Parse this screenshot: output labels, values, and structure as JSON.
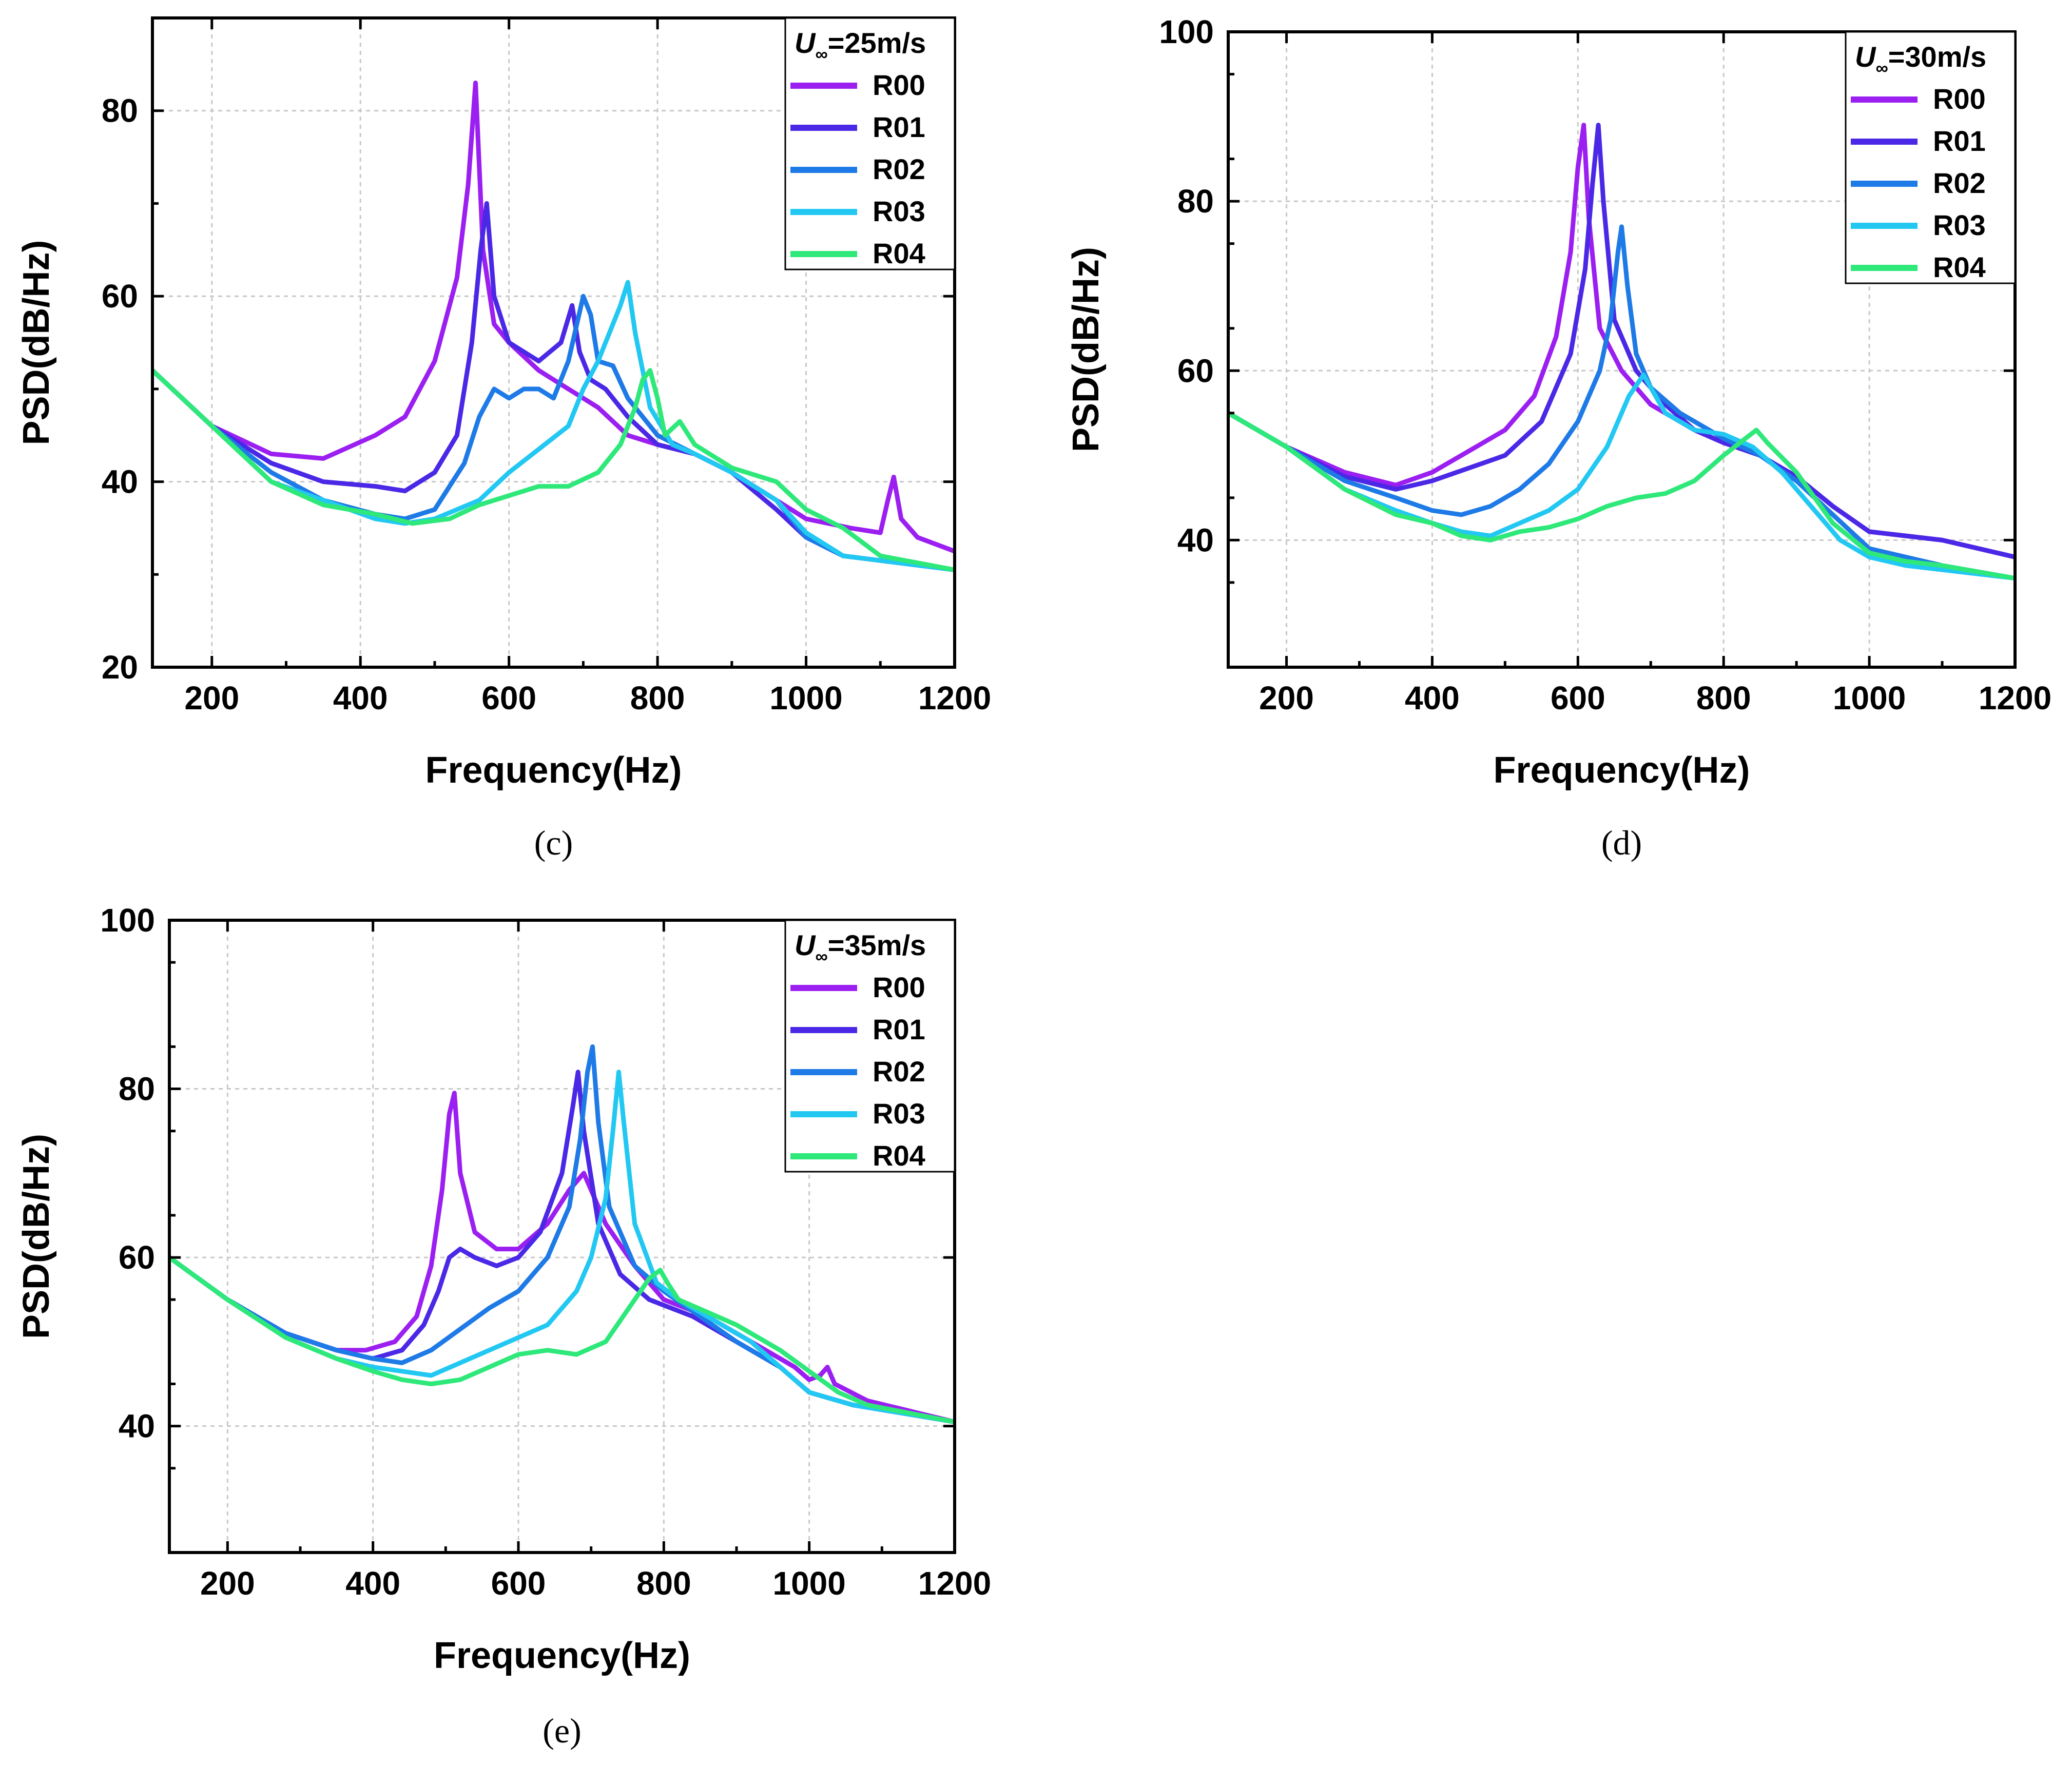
{
  "colors": {
    "R00": "#9b1ff0",
    "R01": "#4a28e6",
    "R02": "#1e7ae6",
    "R03": "#22c8f2",
    "R04": "#2ee87a"
  },
  "chart_data": [
    {
      "type": "line",
      "panel_label": "(c)",
      "legend_title_var": "U",
      "legend_title_sub": "∞",
      "legend_title_val": "=25m/s",
      "xlabel": "Frequency(Hz)",
      "ylabel": "PSD(dB/Hz)",
      "xlim": [
        120,
        1200
      ],
      "ylim": [
        20,
        90
      ],
      "xticks": [
        200,
        400,
        600,
        800,
        1000,
        1200
      ],
      "yticks": [
        20,
        40,
        60,
        80
      ],
      "xtick_labels": [
        "200",
        "400",
        "600",
        "800",
        "1000",
        "1200"
      ],
      "ytick_labels": [
        "20",
        "40",
        "60",
        "80"
      ],
      "grid": true,
      "legend_position": "top-right",
      "series": [
        {
          "name": "R00",
          "x": [
            120,
            200,
            280,
            350,
            420,
            460,
            500,
            530,
            545,
            555,
            565,
            580,
            600,
            640,
            680,
            700,
            720,
            760,
            800,
            850,
            900,
            960,
            1000,
            1060,
            1100,
            1110,
            1118,
            1128,
            1150,
            1200
          ],
          "y": [
            52,
            46,
            43,
            42.5,
            45,
            47,
            53,
            62,
            72,
            83,
            65,
            57,
            55,
            52,
            50,
            49,
            48,
            45,
            44,
            43,
            41,
            38,
            36,
            35,
            34.5,
            38,
            40.5,
            36,
            34,
            32.5
          ]
        },
        {
          "name": "R01",
          "x": [
            120,
            200,
            280,
            350,
            420,
            460,
            500,
            530,
            550,
            562,
            570,
            580,
            600,
            640,
            670,
            685,
            695,
            710,
            730,
            760,
            800,
            850,
            900,
            960,
            1000,
            1050,
            1100,
            1200
          ],
          "y": [
            52,
            46,
            42,
            40,
            39.5,
            39,
            41,
            45,
            55,
            65,
            70,
            60,
            55,
            53,
            55,
            59,
            54,
            51,
            50,
            47,
            44,
            43,
            41,
            37,
            34,
            32,
            31.5,
            30.5
          ]
        },
        {
          "name": "R02",
          "x": [
            120,
            200,
            280,
            350,
            420,
            460,
            500,
            540,
            560,
            580,
            600,
            620,
            640,
            660,
            680,
            700,
            710,
            720,
            740,
            760,
            800,
            850,
            900,
            960,
            1000,
            1050,
            1100,
            1200
          ],
          "y": [
            52,
            46,
            41,
            38,
            36.5,
            36,
            37,
            42,
            47,
            50,
            49,
            50,
            50,
            49,
            53,
            60,
            58,
            53,
            52.5,
            49,
            45,
            43,
            41,
            38,
            34,
            32,
            31.5,
            30.5
          ]
        },
        {
          "name": "R03",
          "x": [
            120,
            200,
            280,
            350,
            420,
            460,
            500,
            560,
            600,
            640,
            680,
            700,
            720,
            740,
            750,
            760,
            770,
            790,
            820,
            850,
            900,
            960,
            1000,
            1050,
            1100,
            1200
          ],
          "y": [
            52,
            46,
            40,
            38,
            36,
            35.5,
            36,
            38,
            41,
            43.5,
            46,
            50,
            53,
            57,
            59,
            61.5,
            56,
            48,
            44,
            43,
            41,
            38,
            34.5,
            32,
            31.5,
            30.5
          ]
        },
        {
          "name": "R04",
          "x": [
            120,
            200,
            280,
            350,
            420,
            470,
            520,
            560,
            600,
            640,
            680,
            720,
            750,
            770,
            780,
            790,
            800,
            810,
            830,
            850,
            900,
            960,
            1000,
            1050,
            1100,
            1200
          ],
          "y": [
            52,
            46,
            40,
            37.5,
            36.5,
            35.5,
            36,
            37.5,
            38.5,
            39.5,
            39.5,
            41,
            44,
            48,
            51,
            52,
            49,
            45,
            46.5,
            44,
            41.5,
            40,
            37,
            35,
            32,
            30.5
          ]
        }
      ]
    },
    {
      "type": "line",
      "panel_label": "(d)",
      "legend_title_var": "U",
      "legend_title_sub": "∞",
      "legend_title_val": "=30m/s",
      "xlabel": "Frequency(Hz)",
      "ylabel": "PSD(dB/Hz)",
      "xlim": [
        120,
        1200
      ],
      "ylim": [
        25,
        100
      ],
      "xticks": [
        200,
        400,
        600,
        800,
        1000,
        1200
      ],
      "yticks": [
        40,
        60,
        80,
        100
      ],
      "xtick_labels": [
        "200",
        "400",
        "600",
        "800",
        "1000",
        "1200"
      ],
      "ytick_labels": [
        "40",
        "60",
        "80",
        "100"
      ],
      "grid": true,
      "legend_position": "top-right",
      "series": [
        {
          "name": "R00",
          "x": [
            120,
            200,
            280,
            350,
            400,
            450,
            500,
            540,
            570,
            590,
            600,
            608,
            615,
            630,
            660,
            700,
            760,
            800,
            850,
            900,
            950,
            1000,
            1050,
            1100,
            1200
          ],
          "y": [
            55,
            51,
            48,
            46.5,
            48,
            50.5,
            53,
            57,
            64,
            74,
            84,
            89,
            78,
            65,
            60,
            56,
            53,
            51.5,
            50,
            47.5,
            44,
            41,
            40.5,
            40,
            38
          ]
        },
        {
          "name": "R01",
          "x": [
            120,
            200,
            280,
            350,
            400,
            450,
            500,
            550,
            590,
            610,
            620,
            628,
            635,
            650,
            680,
            720,
            760,
            800,
            850,
            900,
            950,
            1000,
            1050,
            1100,
            1200
          ],
          "y": [
            55,
            51,
            47.5,
            46,
            47,
            48.5,
            50,
            54,
            62,
            72,
            82,
            89,
            80,
            66,
            60,
            56,
            53,
            51.5,
            50,
            47.5,
            44,
            41,
            40.5,
            40,
            38
          ]
        },
        {
          "name": "R02",
          "x": [
            120,
            200,
            280,
            350,
            400,
            440,
            480,
            520,
            560,
            600,
            630,
            645,
            655,
            660,
            668,
            680,
            700,
            740,
            800,
            850,
            900,
            950,
            1000,
            1050,
            1100,
            1200
          ],
          "y": [
            55,
            51,
            47,
            45,
            43.5,
            43,
            44,
            46,
            49,
            54,
            60,
            66,
            74,
            77,
            70,
            62,
            58,
            55,
            52,
            50,
            47,
            43,
            39,
            38,
            37,
            35.5
          ]
        },
        {
          "name": "R03",
          "x": [
            120,
            200,
            280,
            350,
            400,
            440,
            480,
            520,
            560,
            600,
            640,
            670,
            690,
            700,
            720,
            760,
            800,
            840,
            880,
            920,
            960,
            1000,
            1050,
            1100,
            1200
          ],
          "y": [
            55,
            51,
            46,
            43.5,
            42,
            41,
            40.5,
            42,
            43.5,
            46,
            51,
            57,
            59.5,
            58,
            55,
            53,
            52.5,
            51,
            48,
            44,
            40,
            38,
            37,
            36.5,
            35.5
          ]
        },
        {
          "name": "R04",
          "x": [
            120,
            200,
            280,
            350,
            400,
            440,
            480,
            520,
            560,
            600,
            640,
            680,
            720,
            760,
            800,
            830,
            845,
            860,
            900,
            950,
            1000,
            1050,
            1100,
            1200
          ],
          "y": [
            55,
            51,
            46,
            43,
            42,
            40.5,
            40,
            41,
            41.5,
            42.5,
            44,
            45,
            45.5,
            47,
            50,
            52,
            53,
            51.5,
            48,
            42,
            38.5,
            37.5,
            37,
            35.5
          ]
        }
      ]
    },
    {
      "type": "line",
      "panel_label": "(e)",
      "legend_title_var": "U",
      "legend_title_sub": "∞",
      "legend_title_val": "=35m/s",
      "xlabel": "Frequency(Hz)",
      "ylabel": "PSD(dB/Hz)",
      "xlim": [
        120,
        1200
      ],
      "ylim": [
        25,
        100
      ],
      "xticks": [
        200,
        400,
        600,
        800,
        1000,
        1200
      ],
      "yticks": [
        40,
        60,
        80,
        100
      ],
      "xtick_labels": [
        "200",
        "400",
        "600",
        "800",
        "1000",
        "1200"
      ],
      "ytick_labels": [
        "40",
        "60",
        "80",
        "100"
      ],
      "grid": true,
      "legend_position": "top-right",
      "series": [
        {
          "name": "R00",
          "x": [
            120,
            200,
            280,
            350,
            390,
            430,
            460,
            480,
            495,
            505,
            512,
            520,
            540,
            570,
            600,
            640,
            670,
            690,
            720,
            760,
            800,
            860,
            920,
            980,
            1000,
            1015,
            1025,
            1035,
            1080,
            1200
          ],
          "y": [
            60,
            55,
            51,
            49,
            49,
            50,
            53,
            59,
            68,
            77,
            79.5,
            70,
            63,
            61,
            61,
            64,
            68,
            70,
            64,
            59,
            55,
            53,
            50,
            47,
            45.5,
            46,
            47,
            45,
            43,
            40.5
          ]
        },
        {
          "name": "R01",
          "x": [
            120,
            200,
            280,
            350,
            400,
            440,
            470,
            490,
            505,
            520,
            540,
            570,
            600,
            630,
            660,
            675,
            682,
            690,
            710,
            740,
            780,
            840,
            900,
            960,
            1000,
            1060,
            1200
          ],
          "y": [
            60,
            55,
            51,
            49,
            48,
            49,
            52,
            56,
            60,
            61,
            60,
            59,
            60,
            63,
            70,
            78,
            82,
            75,
            64,
            58,
            55,
            53,
            50,
            47,
            44,
            42.5,
            40.5
          ]
        },
        {
          "name": "R02",
          "x": [
            120,
            200,
            280,
            350,
            400,
            440,
            480,
            520,
            560,
            600,
            640,
            670,
            685,
            695,
            702,
            710,
            725,
            760,
            800,
            850,
            900,
            960,
            1000,
            1060,
            1200
          ],
          "y": [
            60,
            55,
            51,
            49,
            48,
            47.5,
            49,
            51.5,
            54,
            56,
            60,
            66,
            74,
            82,
            85,
            76,
            66,
            59,
            56,
            53,
            50,
            47,
            44,
            42.5,
            40.5
          ]
        },
        {
          "name": "R03",
          "x": [
            120,
            200,
            280,
            350,
            400,
            440,
            480,
            520,
            560,
            600,
            640,
            680,
            700,
            720,
            730,
            738,
            745,
            760,
            790,
            820,
            860,
            920,
            960,
            1000,
            1060,
            1200
          ],
          "y": [
            60,
            55,
            50.5,
            48,
            47,
            46.5,
            46,
            47.5,
            49,
            50.5,
            52,
            56,
            60,
            67,
            75,
            82,
            76,
            64,
            57,
            55,
            53,
            50,
            47,
            44,
            42.5,
            40.5
          ]
        },
        {
          "name": "R04",
          "x": [
            120,
            200,
            280,
            350,
            400,
            440,
            480,
            520,
            560,
            600,
            640,
            680,
            720,
            760,
            780,
            795,
            805,
            820,
            860,
            900,
            960,
            1000,
            1040,
            1080,
            1200
          ],
          "y": [
            60,
            55,
            50.5,
            48,
            46.5,
            45.5,
            45,
            45.5,
            47,
            48.5,
            49,
            48.5,
            50,
            55,
            57.5,
            58.5,
            57,
            55,
            53.5,
            52,
            49,
            46.5,
            44,
            42.5,
            40.5
          ]
        }
      ]
    }
  ]
}
